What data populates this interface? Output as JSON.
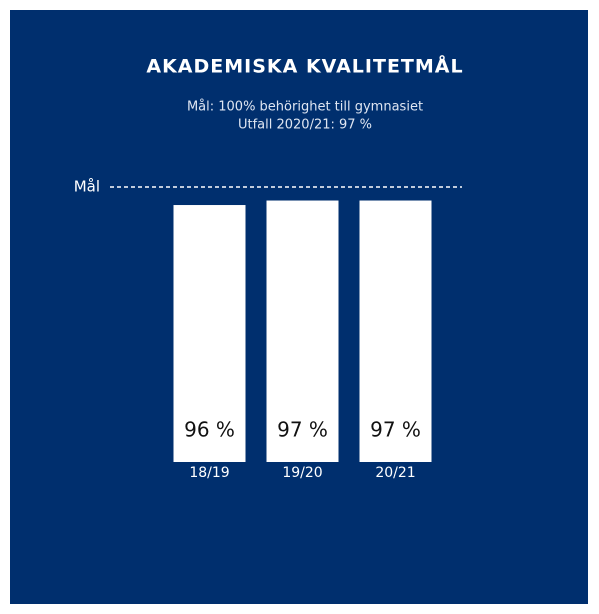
{
  "chart_data": {
    "type": "bar",
    "title": "AKADEMISKA KVALITETMÅL",
    "subtitle": [
      "Mål: 100% behörighet till gymnasiet",
      "Utfall 2020/21: 97 %"
    ],
    "categories": [
      "18/19",
      "19/20",
      "20/21"
    ],
    "values": [
      96,
      97,
      97
    ],
    "value_labels": [
      "96 %",
      "97 %",
      "97 %"
    ],
    "color": "#ffffff",
    "ylim": [
      39,
      100
    ],
    "target": {
      "label": "Mål",
      "value": 100
    }
  }
}
